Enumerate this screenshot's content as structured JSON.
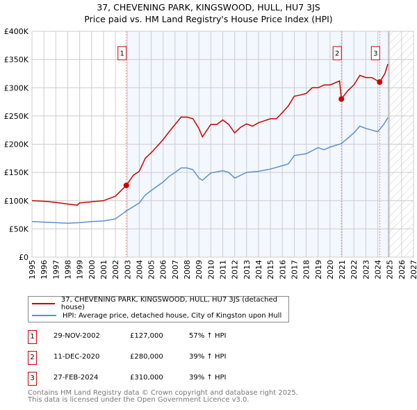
{
  "title_line1": "37, CHEVENING PARK, KINGSWOOD, HULL, HU7 3JS",
  "title_line2": "Price paid vs. HM Land Registry's House Price Index (HPI)",
  "chart_data": {
    "type": "line",
    "title": "37, CHEVENING PARK, KINGSWOOD, HULL, HU7 3JS - Price paid vs. HM Land Registry's House Price Index (HPI)",
    "xlim": [
      1995,
      2027
    ],
    "ylim": [
      0,
      400000
    ],
    "x_ticks": [
      "1995",
      "1996",
      "1997",
      "1998",
      "1999",
      "2000",
      "2001",
      "2002",
      "2003",
      "2004",
      "2005",
      "2006",
      "2007",
      "2008",
      "2009",
      "2010",
      "2011",
      "2012",
      "2013",
      "2014",
      "2015",
      "2016",
      "2017",
      "2018",
      "2019",
      "2020",
      "2021",
      "2022",
      "2023",
      "2024",
      "2025",
      "2026",
      "2027"
    ],
    "y_ticks": [
      {
        "v": 0,
        "label": "£0"
      },
      {
        "v": 50000,
        "label": "£50K"
      },
      {
        "v": 100000,
        "label": "£100K"
      },
      {
        "v": 150000,
        "label": "£150K"
      },
      {
        "v": 200000,
        "label": "£200K"
      },
      {
        "v": 250000,
        "label": "£250K"
      },
      {
        "v": 300000,
        "label": "£300K"
      },
      {
        "v": 350000,
        "label": "£350K"
      },
      {
        "v": 400000,
        "label": "£400K"
      }
    ],
    "grid": true,
    "shaded_from": 2002.91,
    "data_end": 2024.9,
    "series": [
      {
        "name": "37, CHEVENING PARK, KINGSWOOD, HULL, HU7 3JS (detached house)",
        "color": "#cc0000",
        "x": [
          1995,
          1996,
          1997,
          1998,
          1998.8,
          1999,
          2000,
          2001,
          2002,
          2002.91,
          2003.5,
          2004,
          2004.5,
          2005,
          2006,
          2006.5,
          2007,
          2007.5,
          2008,
          2008.5,
          2009,
          2009.3,
          2010,
          2010.5,
          2011,
          2011.5,
          2012,
          2012.5,
          2013,
          2013.5,
          2014,
          2015,
          2015.5,
          2016,
          2016.5,
          2017,
          2017.5,
          2018,
          2018.5,
          2019,
          2019.5,
          2020,
          2020.8,
          2020.95,
          2021.5,
          2022,
          2022.5,
          2023,
          2023.5,
          2024.16,
          2024.6,
          2024.85
        ],
        "y": [
          100000,
          99000,
          97000,
          94000,
          92000,
          96000,
          98000,
          100000,
          108000,
          127000,
          145000,
          152000,
          175000,
          185000,
          208000,
          222000,
          235000,
          248000,
          248000,
          245000,
          228000,
          213000,
          235000,
          235000,
          243000,
          235000,
          220000,
          230000,
          236000,
          232000,
          238000,
          245000,
          245000,
          256000,
          268000,
          285000,
          287000,
          290000,
          300000,
          300000,
          305000,
          305000,
          312000,
          280000,
          295000,
          305000,
          322000,
          318000,
          318000,
          310000,
          325000,
          342000
        ]
      },
      {
        "name": "HPI: Average price, detached house, City of Kingston upon Hull",
        "color": "#5b8fd0",
        "x": [
          1995,
          1996,
          1997,
          1998,
          1999,
          2000,
          2001,
          2002,
          2003,
          2004,
          2004.5,
          2005,
          2006,
          2006.5,
          2007,
          2007.5,
          2008,
          2008.5,
          2009,
          2009.3,
          2010,
          2011,
          2011.5,
          2012,
          2013,
          2014,
          2015,
          2016,
          2016.5,
          2017,
          2018,
          2019,
          2019.5,
          2020,
          2020.95,
          2022,
          2022.5,
          2023,
          2024,
          2024.5,
          2024.85
        ],
        "y": [
          63000,
          62000,
          61000,
          60000,
          61000,
          63000,
          64000,
          68000,
          83000,
          96000,
          110000,
          118000,
          133000,
          143000,
          150000,
          158000,
          158000,
          155000,
          140000,
          136000,
          149000,
          153000,
          150000,
          140000,
          150000,
          152000,
          156000,
          162000,
          165000,
          180000,
          183000,
          194000,
          190000,
          195000,
          201000,
          220000,
          232000,
          228000,
          222000,
          235000,
          247000
        ]
      }
    ],
    "sales": [
      {
        "label": "1",
        "date": "29-NOV-2002",
        "x": 2002.91,
        "price": "£127,000",
        "value": 127000,
        "hpi": "57% ↑ HPI"
      },
      {
        "label": "2",
        "date": "11-DEC-2020",
        "x": 2020.95,
        "price": "£280,000",
        "value": 280000,
        "hpi": "39% ↑ HPI"
      },
      {
        "label": "3",
        "date": "27-FEB-2024",
        "x": 2024.16,
        "price": "£310,000",
        "value": 310000,
        "hpi": "39% ↑ HPI"
      }
    ]
  },
  "legend": {
    "red": "37, CHEVENING PARK, KINGSWOOD, HULL, HU7 3JS (detached house)",
    "blue": "HPI: Average price, detached house, City of Kingston upon Hull"
  },
  "footer1": "Contains HM Land Registry data © Crown copyright and database right 2025.",
  "footer2": "This data is licensed under the Open Government Licence v3.0."
}
